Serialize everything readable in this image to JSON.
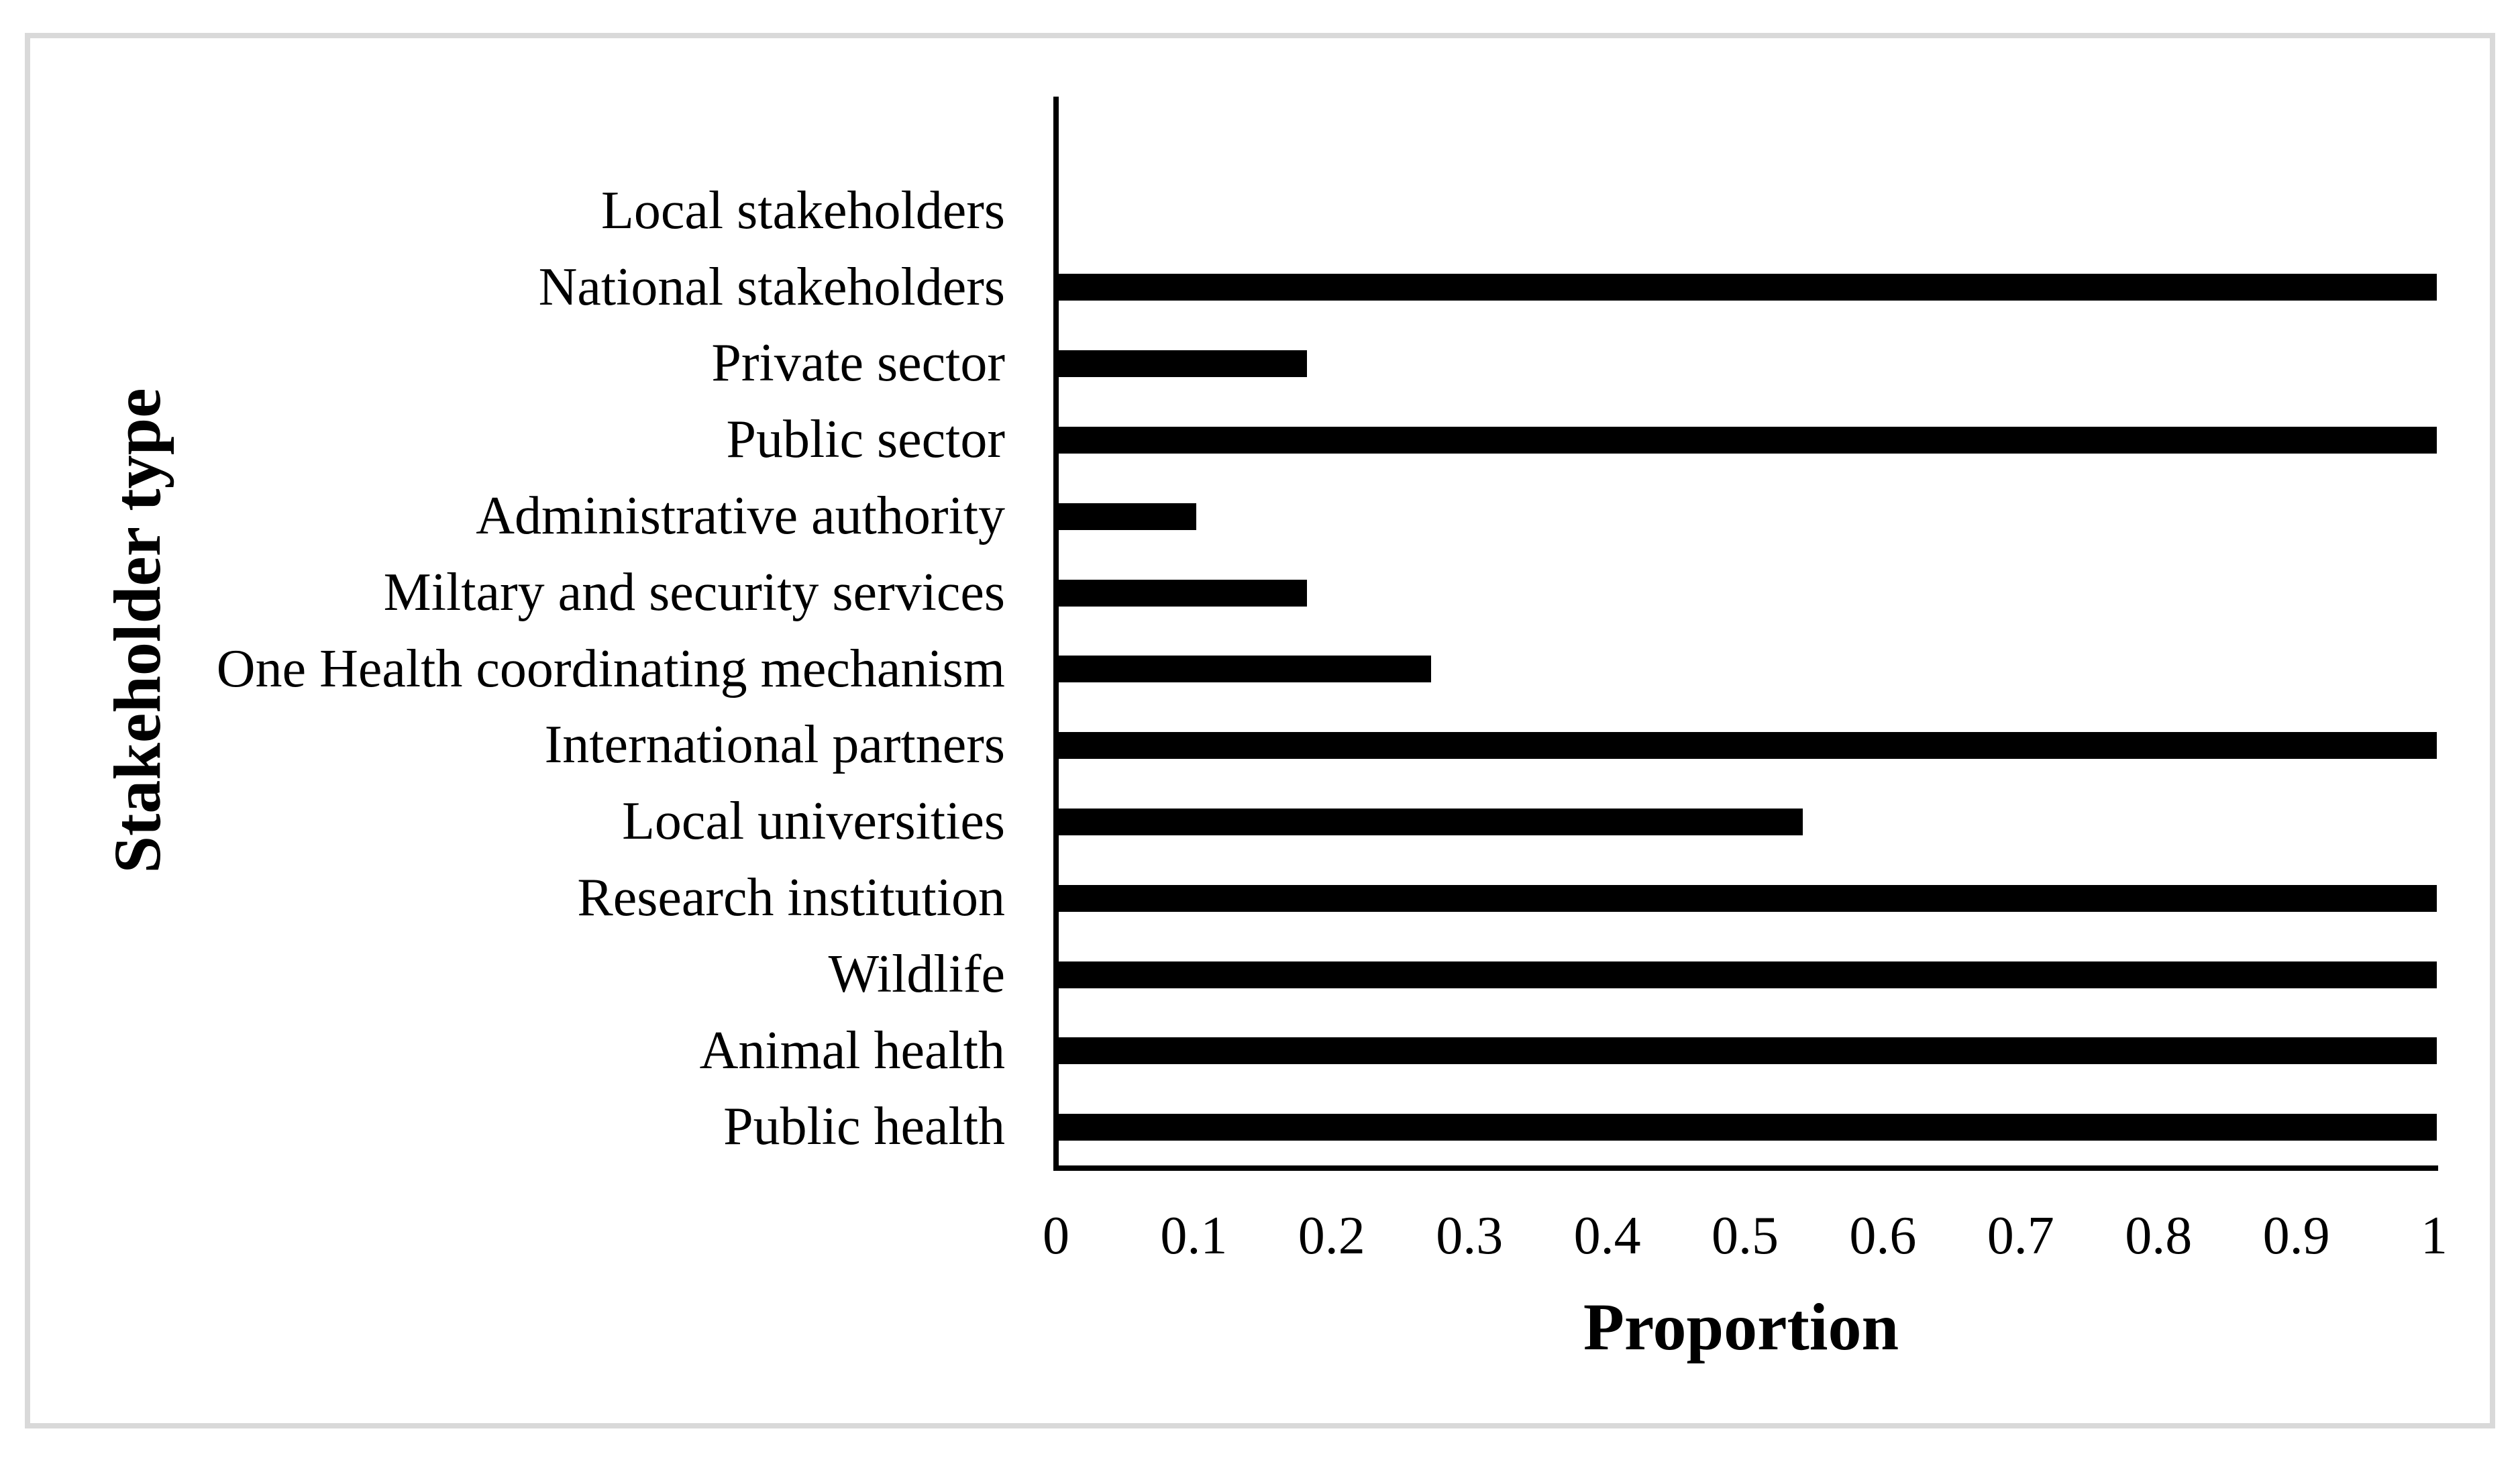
{
  "chart_data": {
    "type": "bar",
    "orientation": "horizontal",
    "categories": [
      "Local stakeholders",
      "National stakeholders",
      "Private sector",
      "Public sector",
      "Administrative authority",
      "Miltary and security services",
      "One Health coordinating mechanism",
      "International partners",
      "Local universities",
      "Research institution",
      "Wildlife",
      "Animal health",
      "Public health"
    ],
    "values": [
      0,
      1,
      0.18,
      1,
      0.1,
      0.18,
      0.27,
      1,
      0.54,
      1,
      1,
      1,
      1
    ],
    "xlabel": "Proportion",
    "ylabel": "Stakeholder type",
    "x_ticks": [
      "0",
      "0.1",
      "0.2",
      "0.3",
      "0.4",
      "0.5",
      "0.6",
      "0.7",
      "0.8",
      "0.9",
      "1"
    ],
    "xlim": [
      0,
      1
    ],
    "grid": "off",
    "legend": "none",
    "bar_color": "#000000",
    "axis_color": "#000000",
    "frame_color": "#d9d9d9",
    "background_color": "#ffffff"
  }
}
